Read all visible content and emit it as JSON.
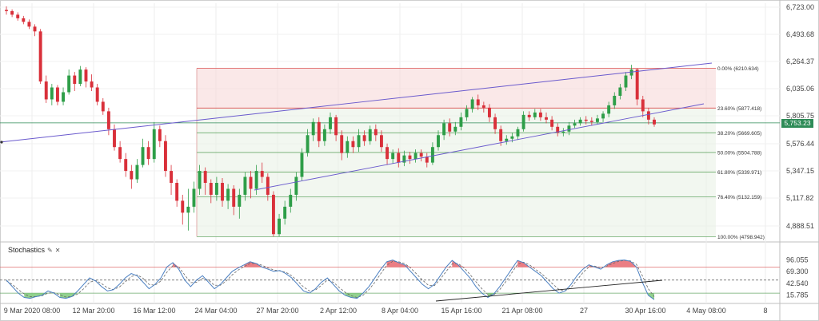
{
  "chart_data": [
    {
      "type": "candlestick",
      "title": "",
      "y_ticks": [
        "6,723.00",
        "6,493.68",
        "6,264.37",
        "6,035.06",
        "5,805.75",
        "5,576.44",
        "5,347.15",
        "5,117.82",
        "4,888.51"
      ],
      "x_ticks": [
        "9 Mar 2020 08:00",
        "12 Mar 20:00",
        "16 Mar 12:00",
        "24 Mar 04:00",
        "27 Mar 20:00",
        "2 Apr 12:00",
        "8 Apr 04:00",
        "15 Apr 16:00",
        "21 Apr 08:00",
        "27",
        "30 Apr 16:00",
        "4 May 08:00",
        "8"
      ],
      "ylim": [
        4800,
        6760
      ],
      "last_price": "5,753.23",
      "last_price_value": 5753.23,
      "horizontal_line": 5753.23,
      "fibonacci": [
        {
          "label": "0.00% (6210.634)",
          "value": 6210.634
        },
        {
          "label": "23.60% (5877.418)",
          "value": 5877.418
        },
        {
          "label": "38.20% (5669.605)",
          "value": 5669.605
        },
        {
          "label": "50.00% (5504.788)",
          "value": 5504.788
        },
        {
          "label": "61.80% (5339.971)",
          "value": 5339.971
        },
        {
          "label": "76.40% (5132.159)",
          "value": 5132.159
        },
        {
          "label": "100.00% (4798.942)",
          "value": 4798.942
        }
      ],
      "colors": {
        "up": "#2e9e48",
        "down": "#d9303a",
        "fib_top": "#d94c4c",
        "fib": "#6aaa6a",
        "trend": "#6a5acd",
        "hline": "#2e8b57"
      },
      "candles": [
        [
          6700,
          6690,
          6730,
          6660
        ],
        [
          6690,
          6660,
          6705,
          6640
        ],
        [
          6660,
          6630,
          6680,
          6610
        ],
        [
          6630,
          6600,
          6650,
          6580
        ],
        [
          6600,
          6560,
          6620,
          6540
        ],
        [
          6560,
          6520,
          6580,
          6480
        ],
        [
          6520,
          6100,
          6540,
          6080
        ],
        [
          6100,
          5950,
          6150,
          5920
        ],
        [
          5950,
          6050,
          6080,
          5900
        ],
        [
          6050,
          5930,
          6070,
          5900
        ],
        [
          5930,
          6010,
          6050,
          5900
        ],
        [
          6010,
          6150,
          6200,
          5990
        ],
        [
          6150,
          6080,
          6180,
          6020
        ],
        [
          6080,
          6200,
          6230,
          6060
        ],
        [
          6200,
          6100,
          6220,
          6050
        ],
        [
          6100,
          6050,
          6160,
          6020
        ],
        [
          6050,
          5930,
          6080,
          5900
        ],
        [
          5930,
          5850,
          5960,
          5820
        ],
        [
          5850,
          5700,
          5880,
          5650
        ],
        [
          5700,
          5550,
          5740,
          5520
        ],
        [
          5550,
          5450,
          5600,
          5420
        ],
        [
          5450,
          5350,
          5500,
          5300
        ],
        [
          5350,
          5280,
          5400,
          5200
        ],
        [
          5280,
          5400,
          5450,
          5250
        ],
        [
          5400,
          5550,
          5620,
          5380
        ],
        [
          5550,
          5450,
          5600,
          5400
        ],
        [
          5450,
          5700,
          5760,
          5420
        ],
        [
          5700,
          5600,
          5730,
          5550
        ],
        [
          5600,
          5350,
          5650,
          5300
        ],
        [
          5350,
          5250,
          5400,
          5150
        ],
        [
          5250,
          5100,
          5280,
          5050
        ],
        [
          5100,
          5000,
          5150,
          4900
        ],
        [
          5000,
          5050,
          5200,
          4850
        ],
        [
          5050,
          5200,
          5260,
          5000
        ],
        [
          5200,
          5350,
          5400,
          5150
        ],
        [
          5350,
          5250,
          5380,
          5150
        ],
        [
          5250,
          5150,
          5280,
          5080
        ],
        [
          5150,
          5250,
          5300,
          5100
        ],
        [
          5250,
          5100,
          5290,
          5050
        ],
        [
          5100,
          5200,
          5240,
          5030
        ],
        [
          5200,
          5050,
          5230,
          4980
        ],
        [
          5050,
          5150,
          5200,
          4950
        ],
        [
          5150,
          5300,
          5340,
          5100
        ],
        [
          5300,
          5200,
          5350,
          5120
        ],
        [
          5200,
          5350,
          5400,
          5150
        ],
        [
          5350,
          5300,
          5420,
          5250
        ],
        [
          5300,
          5150,
          5330,
          5100
        ],
        [
          5150,
          4820,
          5180,
          4800
        ],
        [
          4820,
          4950,
          4990,
          4800
        ],
        [
          4950,
          5050,
          5100,
          4900
        ],
        [
          5050,
          5150,
          5200,
          5000
        ],
        [
          5150,
          5300,
          5340,
          5100
        ],
        [
          5300,
          5500,
          5540,
          5270
        ],
        [
          5500,
          5650,
          5700,
          5470
        ],
        [
          5650,
          5760,
          5790,
          5600
        ],
        [
          5760,
          5600,
          5800,
          5550
        ],
        [
          5600,
          5700,
          5740,
          5560
        ],
        [
          5700,
          5800,
          5840,
          5660
        ],
        [
          5800,
          5650,
          5820,
          5600
        ],
        [
          5650,
          5500,
          5690,
          5440
        ],
        [
          5500,
          5600,
          5640,
          5460
        ],
        [
          5600,
          5550,
          5640,
          5500
        ],
        [
          5550,
          5650,
          5700,
          5510
        ],
        [
          5650,
          5600,
          5690,
          5560
        ],
        [
          5600,
          5700,
          5730,
          5570
        ],
        [
          5700,
          5650,
          5740,
          5600
        ],
        [
          5650,
          5550,
          5690,
          5510
        ],
        [
          5550,
          5450,
          5580,
          5400
        ],
        [
          5450,
          5500,
          5530,
          5410
        ],
        [
          5500,
          5420,
          5540,
          5380
        ],
        [
          5420,
          5480,
          5520,
          5390
        ],
        [
          5480,
          5450,
          5510,
          5410
        ],
        [
          5450,
          5500,
          5530,
          5420
        ],
        [
          5500,
          5470,
          5530,
          5430
        ],
        [
          5470,
          5420,
          5500,
          5380
        ],
        [
          5420,
          5550,
          5590,
          5400
        ],
        [
          5550,
          5650,
          5690,
          5520
        ],
        [
          5650,
          5750,
          5780,
          5610
        ],
        [
          5750,
          5680,
          5790,
          5640
        ],
        [
          5680,
          5720,
          5760,
          5650
        ],
        [
          5720,
          5800,
          5840,
          5690
        ],
        [
          5800,
          5870,
          5900,
          5770
        ],
        [
          5870,
          5950,
          5970,
          5840
        ],
        [
          5950,
          5900,
          5990,
          5860
        ],
        [
          5900,
          5880,
          5930,
          5840
        ],
        [
          5880,
          5800,
          5910,
          5760
        ],
        [
          5800,
          5700,
          5830,
          5660
        ],
        [
          5700,
          5600,
          5730,
          5560
        ],
        [
          5600,
          5620,
          5650,
          5570
        ],
        [
          5620,
          5640,
          5670,
          5590
        ],
        [
          5640,
          5700,
          5720,
          5610
        ],
        [
          5700,
          5820,
          5850,
          5680
        ],
        [
          5820,
          5800,
          5850,
          5770
        ],
        [
          5800,
          5840,
          5870,
          5780
        ],
        [
          5840,
          5800,
          5870,
          5770
        ],
        [
          5800,
          5780,
          5840,
          5750
        ],
        [
          5780,
          5720,
          5810,
          5690
        ],
        [
          5720,
          5670,
          5750,
          5640
        ],
        [
          5670,
          5680,
          5710,
          5640
        ],
        [
          5680,
          5730,
          5760,
          5650
        ],
        [
          5730,
          5750,
          5780,
          5710
        ],
        [
          5750,
          5780,
          5800,
          5730
        ],
        [
          5780,
          5770,
          5810,
          5740
        ],
        [
          5770,
          5760,
          5800,
          5730
        ],
        [
          5760,
          5790,
          5820,
          5740
        ],
        [
          5790,
          5830,
          5850,
          5760
        ],
        [
          5830,
          5900,
          5930,
          5800
        ],
        [
          5900,
          5980,
          6010,
          5870
        ],
        [
          5980,
          6050,
          6080,
          5950
        ],
        [
          6050,
          6150,
          6180,
          6020
        ],
        [
          6150,
          6200,
          6240,
          6120
        ],
        [
          6200,
          5950,
          6210,
          5900
        ],
        [
          5950,
          5850,
          5980,
          5800
        ],
        [
          5850,
          5780,
          5880,
          5740
        ],
        [
          5780,
          5740,
          5800,
          5720
        ]
      ]
    },
    {
      "type": "line",
      "title": "Stochastics",
      "y_ticks": [
        "96.055",
        "69.300",
        "42.540",
        "15.785"
      ],
      "ylim": [
        0,
        110
      ],
      "levels": [
        80,
        50,
        20
      ],
      "series": [
        {
          "values": [
            50,
            35,
            20,
            10,
            8,
            12,
            15,
            25,
            20,
            10,
            8,
            12,
            25,
            40,
            55,
            48,
            35,
            25,
            28,
            40,
            55,
            65,
            60,
            45,
            30,
            40,
            55,
            80,
            90,
            75,
            50,
            35,
            50,
            60,
            45,
            30,
            40,
            55,
            70,
            78,
            85,
            92,
            88,
            80,
            75,
            70,
            72,
            65,
            55,
            40,
            25,
            20,
            30,
            45,
            55,
            40,
            25,
            15,
            10,
            8,
            20,
            35,
            55,
            75,
            92,
            96,
            90,
            85,
            70,
            55,
            40,
            30,
            40,
            60,
            80,
            95,
            85,
            70,
            55,
            35,
            20,
            10,
            18,
            35,
            55,
            75,
            95,
            90,
            80,
            70,
            60,
            45,
            30,
            20,
            25,
            40,
            60,
            75,
            85,
            80,
            75,
            85,
            92,
            95,
            96,
            93,
            80,
            45,
            15,
            5
          ]
        },
        {
          "values": [
            48,
            40,
            28,
            18,
            12,
            12,
            14,
            20,
            21,
            16,
            11,
            12,
            18,
            30,
            45,
            49,
            42,
            32,
            28,
            34,
            46,
            58,
            62,
            54,
            40,
            38,
            48,
            68,
            83,
            80,
            62,
            44,
            45,
            54,
            50,
            38,
            38,
            48,
            62,
            73,
            81,
            88,
            88,
            84,
            78,
            73,
            71,
            68,
            60,
            48,
            34,
            25,
            27,
            38,
            50,
            45,
            33,
            22,
            14,
            10,
            15,
            28,
            45,
            65,
            84,
            93,
            92,
            88,
            78,
            64,
            50,
            38,
            37,
            52,
            70,
            87,
            88,
            78,
            63,
            46,
            30,
            17,
            16,
            28,
            46,
            66,
            86,
            91,
            85,
            75,
            65,
            53,
            40,
            28,
            25,
            33,
            50,
            67,
            80,
            82,
            78,
            82,
            88,
            93,
            95,
            94,
            86,
            60,
            30,
            12
          ]
        }
      ]
    }
  ],
  "stochastics_title": "Stochastics",
  "stochastics_icons": [
    "pencil-icon",
    "close-icon"
  ]
}
